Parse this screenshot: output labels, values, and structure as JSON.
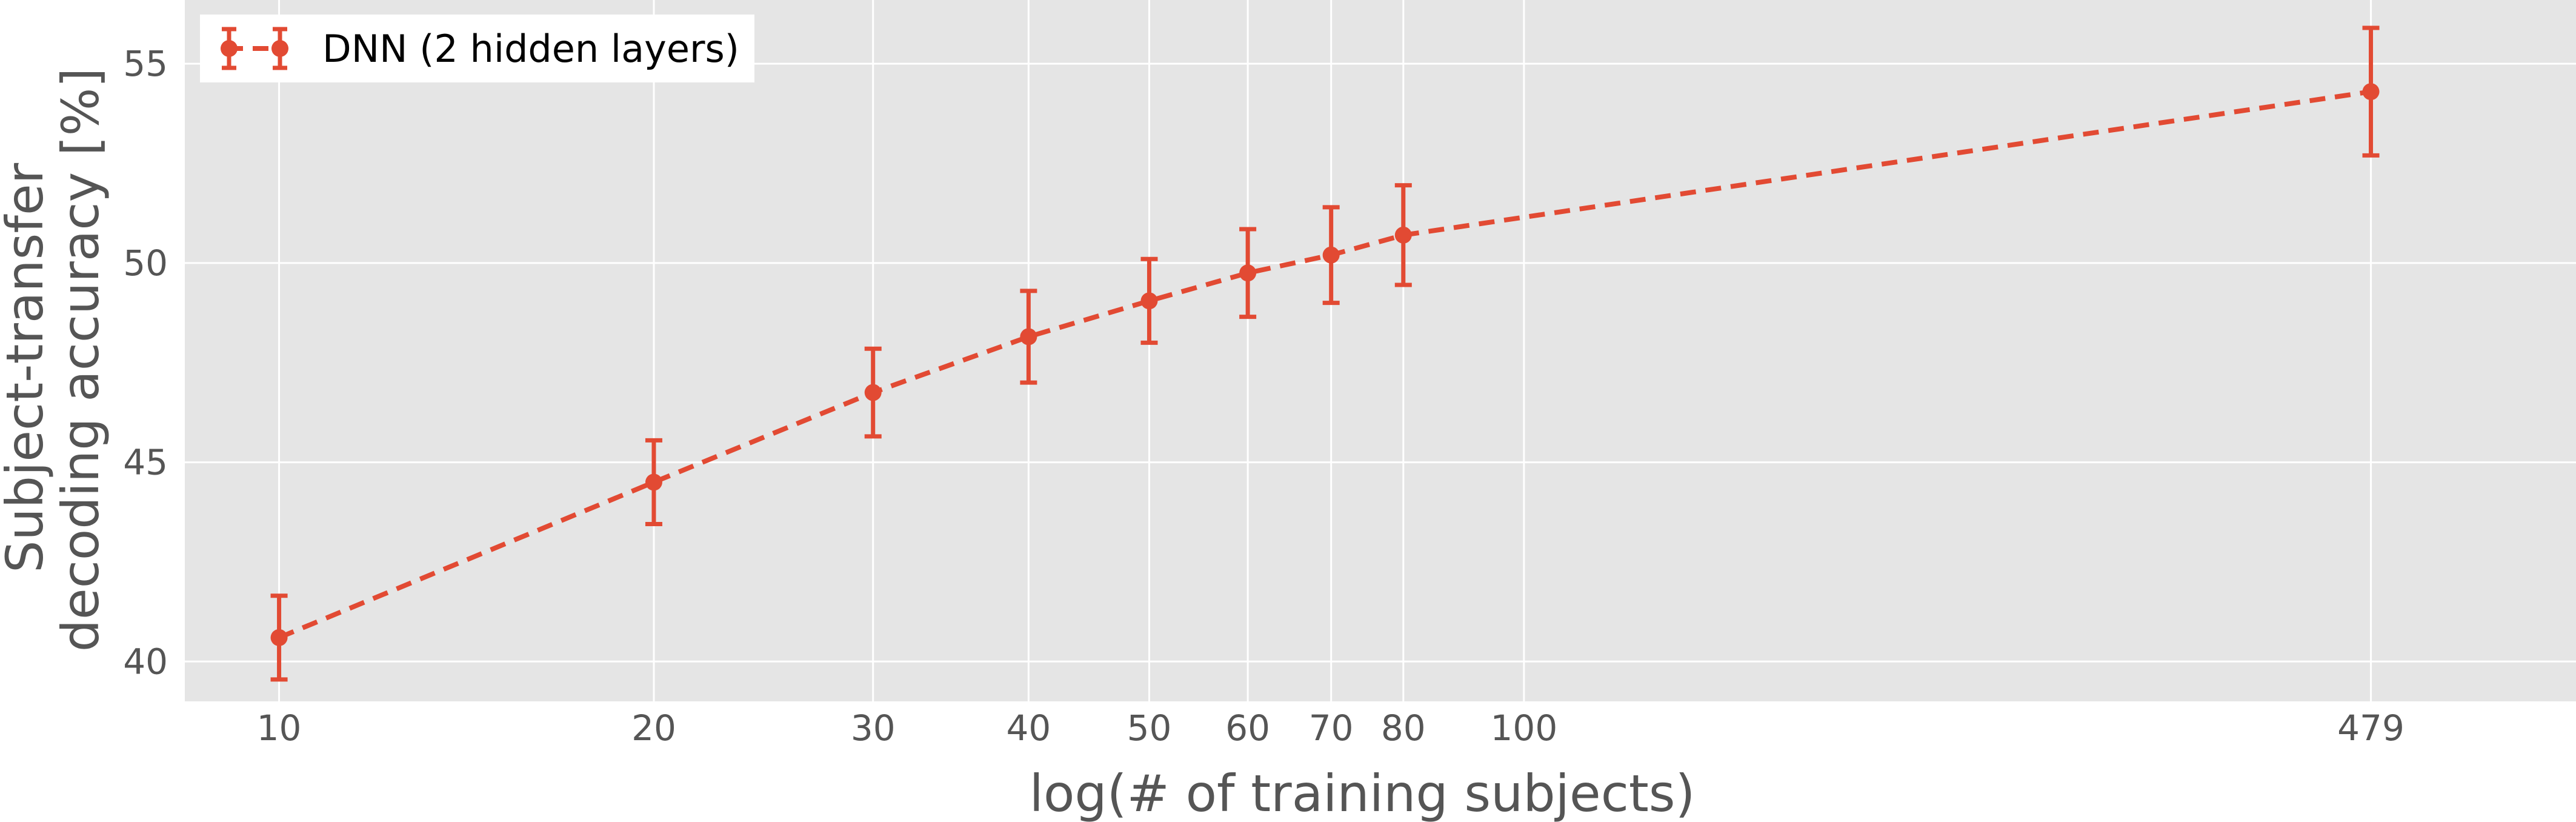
{
  "chart_data": {
    "type": "line",
    "xlabel": "log(# of training subjects)",
    "ylabel_lines": [
      "Subject-transfer",
      "decoding accuracy [%]"
    ],
    "x_scale": "log",
    "xlim": [
      8.4,
      700
    ],
    "ylim": [
      39.0,
      56.6
    ],
    "x_ticks": [
      10,
      20,
      30,
      40,
      50,
      60,
      70,
      80,
      100,
      479
    ],
    "y_ticks": [
      40,
      45,
      50,
      55
    ],
    "grid": true,
    "legend": "top-left",
    "colors": {
      "series": "#E24A33",
      "plot_bg": "#E5E5E5",
      "grid": "#FFFFFF",
      "text": "#555555"
    },
    "series": [
      {
        "name": "DNN (2 hidden layers)",
        "style": "dashed-markers-errorbars",
        "x": [
          10,
          20,
          30,
          40,
          50,
          60,
          70,
          80,
          479
        ],
        "y": [
          40.6,
          44.5,
          46.75,
          48.15,
          49.05,
          49.75,
          50.2,
          50.7,
          54.3
        ],
        "err": [
          1.05,
          1.05,
          1.1,
          1.15,
          1.05,
          1.1,
          1.2,
          1.25,
          1.6
        ]
      }
    ]
  }
}
